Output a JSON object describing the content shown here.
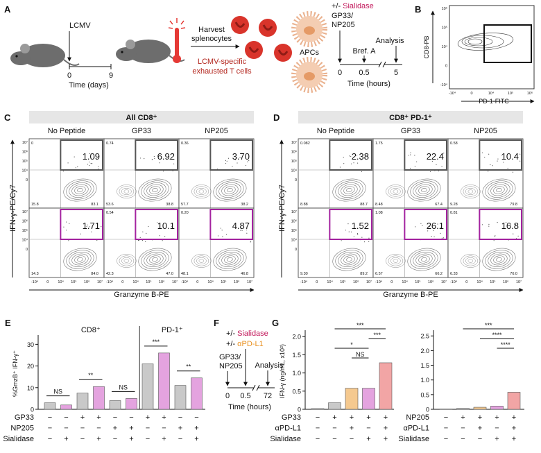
{
  "figure": {
    "A": {
      "letter": "A",
      "infection": "LCMV",
      "day_ticks": [
        "0",
        "9"
      ],
      "day_axis": "Time (days)",
      "harvest": [
        "Harvest",
        "splenocytes"
      ],
      "cells": [
        "LCMV-specific",
        "exhausted T cells"
      ],
      "apcs": "APCs",
      "treatment_prefix": "+/-",
      "treatment": "Sialidase",
      "peptide": [
        "GP33/",
        "NP205"
      ],
      "bref": "Bref. A",
      "analysis": "Analysis",
      "hour_ticks": [
        "0",
        "0.5",
        "5"
      ],
      "hour_axis": "Time (hours)"
    },
    "B": {
      "letter": "B",
      "y_label": "CD8-PB",
      "x_label": "PD-1-FITC",
      "y_ticks": [
        "10⁶",
        "10⁵",
        "10⁴",
        "0",
        "-10⁴"
      ],
      "x_ticks": [
        "-10⁴",
        "0",
        "10⁴",
        "10⁵",
        "10⁶"
      ]
    },
    "C": {
      "letter": "C",
      "title": "All CD8⁺",
      "columns": [
        "No Peptide",
        "GP33",
        "NP205"
      ],
      "y_label": "IFN-γ-PE/Cy7",
      "x_label": "Granzyme B-PE",
      "y_ticks": [
        "10⁷",
        "10⁶",
        "10⁵",
        "10⁴",
        "0"
      ],
      "x_ticks": [
        "-10⁴",
        "0",
        "10⁴",
        "10⁵",
        "10⁶",
        "10⁷"
      ],
      "gate_colors": [
        "#555555",
        "#a3229f"
      ],
      "plots": [
        [
          {
            "gate": "1.09",
            "upper_left": "0",
            "lower_left": "15.8",
            "lower_right": "83.1"
          },
          {
            "gate": "6.92",
            "upper_left": "0.74",
            "lower_left": "53.6",
            "lower_right": "38.8"
          },
          {
            "gate": "3.70",
            "upper_left": "0.36",
            "lower_left": "57.7",
            "lower_right": "38.2"
          }
        ],
        [
          {
            "gate": "1.71",
            "lower_left": "14.3",
            "lower_right": "84.0"
          },
          {
            "gate": "10.1",
            "upper_left": "0.54",
            "lower_left": "42.3",
            "lower_right": "47.0"
          },
          {
            "gate": "4.87",
            "upper_left": "0.20",
            "lower_left": "48.1",
            "lower_right": "46.8"
          }
        ]
      ]
    },
    "D": {
      "letter": "D",
      "title": "CD8⁺ PD-1⁺",
      "columns": [
        "No Peptide",
        "GP33",
        "NP205"
      ],
      "y_label": "IFN-γ-PE/Cy7",
      "x_label": "Granzyme B-PE",
      "y_ticks": [
        "10⁷",
        "10⁶",
        "10⁵",
        "10⁴",
        "0"
      ],
      "x_ticks": [
        "-10⁴",
        "0",
        "10⁴",
        "10⁵",
        "10⁶",
        "10⁷"
      ],
      "gate_colors": [
        "#555555",
        "#a3229f"
      ],
      "plots": [
        [
          {
            "gate": "2.38",
            "upper_left": "0.082",
            "lower_left": "8.88",
            "lower_right": "88.7"
          },
          {
            "gate": "22.4",
            "upper_left": "1.75",
            "lower_left": "8.48",
            "lower_right": "67.4"
          },
          {
            "gate": "10.4",
            "upper_left": "0.58",
            "lower_left": "9.28",
            "lower_right": "79.8"
          }
        ],
        [
          {
            "gate": "1.52",
            "lower_left": "9.30",
            "lower_right": "89.2"
          },
          {
            "gate": "26.1",
            "upper_left": "1.08",
            "lower_left": "6.57",
            "lower_right": "66.2"
          },
          {
            "gate": "16.8",
            "upper_left": "0.81",
            "lower_left": "6.33",
            "lower_right": "76.0"
          }
        ]
      ]
    },
    "F": {
      "letter": "F",
      "prefix": "+/-",
      "treatment1": "Sialidase",
      "treatment2": "αPD-L1",
      "peptide": [
        "GP33/",
        "NP205"
      ],
      "analysis": "Analysis",
      "ticks": [
        "0",
        "0.5",
        "72"
      ],
      "axis": "Time (hours)"
    }
  },
  "chart_data": [
    {
      "type": "bar",
      "letter": "E",
      "y_label": "%GmzB⁺ IFN-γ⁺",
      "ylim": [
        0,
        33
      ],
      "yticks": [
        0,
        10,
        20,
        30
      ],
      "groups": [
        {
          "label": "CD8⁺",
          "values": [
            3.0,
            2.0,
            7.5,
            10.5,
            4.0,
            5.0
          ],
          "colors": [
            "#c9c9c9",
            "#e4a3df",
            "#c9c9c9",
            "#e4a3df",
            "#c9c9c9",
            "#e4a3df"
          ]
        },
        {
          "label": "PD-1⁺",
          "values": [
            21,
            26,
            11,
            14.5
          ],
          "colors": [
            "#c9c9c9",
            "#e4a3df",
            "#c9c9c9",
            "#e4a3df"
          ]
        }
      ],
      "conditions": [
        {
          "name": "GP33",
          "color": "#111111",
          "signs": [
            "−",
            "−",
            "+",
            "+",
            "−",
            "−",
            "+",
            "+",
            "−",
            "−"
          ]
        },
        {
          "name": "NP205",
          "color": "#111111",
          "signs": [
            "−",
            "−",
            "−",
            "−",
            "+",
            "+",
            "−",
            "−",
            "+",
            "+"
          ]
        },
        {
          "name": "Sialidase",
          "color": "#a3229f",
          "signs": [
            "−",
            "+",
            "−",
            "+",
            "−",
            "+",
            "−",
            "+",
            "−",
            "+"
          ]
        }
      ],
      "significance": [
        "NS",
        "**",
        "NS",
        "***",
        "**"
      ]
    },
    {
      "type": "bar",
      "letter": "G",
      "y_label": "IFN-γ (ng/mL, x10²)",
      "ylim": [
        0,
        2.1
      ],
      "yticks": [
        0,
        0.5,
        {
          "value": 1,
          "label": "1.0"
        },
        1.5,
        {
          "value": 2,
          "label": "2.0"
        }
      ],
      "values": [
        0.02,
        0.18,
        0.58,
        0.58,
        1.28
      ],
      "colors": [
        "#c9c9c9",
        "#c9c9c9",
        "#f5c98f",
        "#e4a3df",
        "#f2a5a5"
      ],
      "conditions": [
        {
          "name": "GP33",
          "color": "#111111",
          "signs": [
            "−",
            "+",
            "+",
            "+",
            "+"
          ]
        },
        {
          "name": "αPD-L1",
          "color": "#e8901e",
          "signs": [
            "−",
            "−",
            "+",
            "−",
            "+"
          ]
        },
        {
          "name": "Sialidase",
          "color": "#a3229f",
          "signs": [
            "−",
            "−",
            "−",
            "+",
            "+"
          ]
        }
      ],
      "brackets": [
        {
          "label": "***",
          "between": [
            1,
            4
          ]
        },
        {
          "label": "***",
          "between": [
            3,
            4
          ]
        },
        {
          "label": "*",
          "between": [
            1,
            3
          ]
        },
        {
          "label": "NS",
          "between": [
            2,
            3
          ]
        }
      ]
    },
    {
      "type": "bar",
      "ylim": [
        0,
        2.6
      ],
      "yticks": [
        0,
        0.5,
        {
          "value": 1,
          "label": "1.0"
        },
        1.5,
        {
          "value": 2,
          "label": "2.0"
        },
        2.5
      ],
      "values": [
        0.01,
        0.03,
        0.07,
        0.11,
        0.58
      ],
      "colors": [
        "#c9c9c9",
        "#c9c9c9",
        "#f5c98f",
        "#e4a3df",
        "#f2a5a5"
      ],
      "conditions": [
        {
          "name": "NP205",
          "color": "#111111",
          "signs": [
            "−",
            "+",
            "+",
            "+",
            "+"
          ]
        },
        {
          "name": "αPD-L1",
          "color": "#e8901e",
          "signs": [
            "−",
            "−",
            "+",
            "−",
            "+"
          ]
        },
        {
          "name": "Sialidase",
          "color": "#a3229f",
          "signs": [
            "−",
            "−",
            "−",
            "+",
            "+"
          ]
        }
      ],
      "brackets": [
        {
          "label": "***",
          "between": [
            1,
            4
          ]
        },
        {
          "label": "****",
          "between": [
            2,
            4
          ]
        },
        {
          "label": "****",
          "between": [
            3,
            4
          ]
        }
      ]
    }
  ]
}
